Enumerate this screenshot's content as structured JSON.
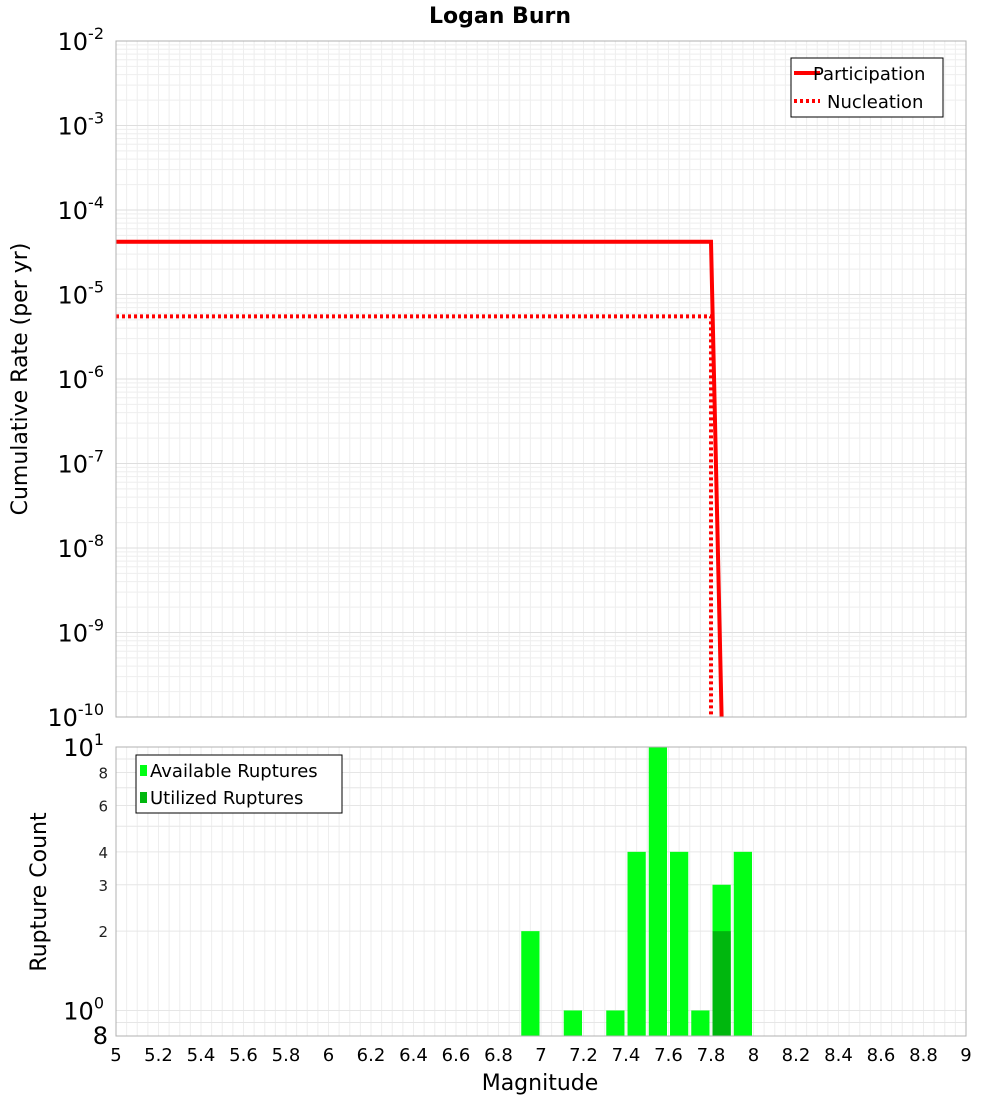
{
  "chart_data": [
    {
      "type": "line",
      "title": "Logan Burn",
      "xlabel": "",
      "ylabel": "Cumulative Rate (per yr)",
      "yscale": "log",
      "xlim": [
        5,
        9
      ],
      "ylim": [
        1e-10,
        0.01
      ],
      "y_tick_exponents": [
        "-2",
        "-3",
        "-4",
        "-5",
        "-6",
        "-7",
        "-8",
        "-9",
        "-10"
      ],
      "y_tick_base": "10",
      "legend_position": "top-right",
      "grid": true,
      "series": [
        {
          "name": "Participation",
          "color": "#ff0000",
          "style": "solid",
          "x": [
            5.0,
            7.8,
            7.85
          ],
          "y": [
            4.2e-05,
            4.2e-05,
            1e-10
          ]
        },
        {
          "name": "Nucleation",
          "color": "#ff0000",
          "style": "dotted",
          "x": [
            5.0,
            7.8,
            7.8
          ],
          "y": [
            5.5e-06,
            5.5e-06,
            1e-10
          ]
        }
      ]
    },
    {
      "type": "bar",
      "title": "",
      "xlabel": "Magnitude",
      "ylabel": "Rupture Count",
      "yscale": "log",
      "xlim": [
        5,
        9
      ],
      "ylim": [
        0.8,
        10
      ],
      "x_tick_labels": [
        "5",
        "5.2",
        "5.4",
        "5.6",
        "5.8",
        "6",
        "6.2",
        "6.4",
        "6.6",
        "6.8",
        "7",
        "7.2",
        "7.4",
        "7.6",
        "7.8",
        "8",
        "8.2",
        "8.4",
        "8.6",
        "8.8",
        "9"
      ],
      "y_tick_labels": [
        {
          "value": 8,
          "text": "8"
        },
        {
          "value": 6,
          "text": "6"
        },
        {
          "value": 4,
          "text": "4"
        },
        {
          "value": 3,
          "text": "3"
        },
        {
          "value": 2,
          "text": "2"
        }
      ],
      "y_decade_labels": [
        {
          "value": 10,
          "base": "10",
          "exp": "1"
        },
        {
          "value": 1,
          "base": "10",
          "exp": "0"
        }
      ],
      "y_bottom_label": "8",
      "legend_position": "top-left",
      "grid": true,
      "bin_width": 0.1,
      "series": [
        {
          "name": "Available Ruptures",
          "color": "#00ff14",
          "bins": [
            6.95,
            7.15,
            7.35,
            7.45,
            7.55,
            7.65,
            7.75,
            7.85,
            7.95
          ],
          "values": [
            2,
            1,
            1,
            4,
            10,
            4,
            1,
            3,
            4
          ]
        },
        {
          "name": "Utilized Ruptures",
          "color": "#00b70e",
          "bins": [
            7.85
          ],
          "values": [
            2
          ]
        }
      ]
    }
  ]
}
